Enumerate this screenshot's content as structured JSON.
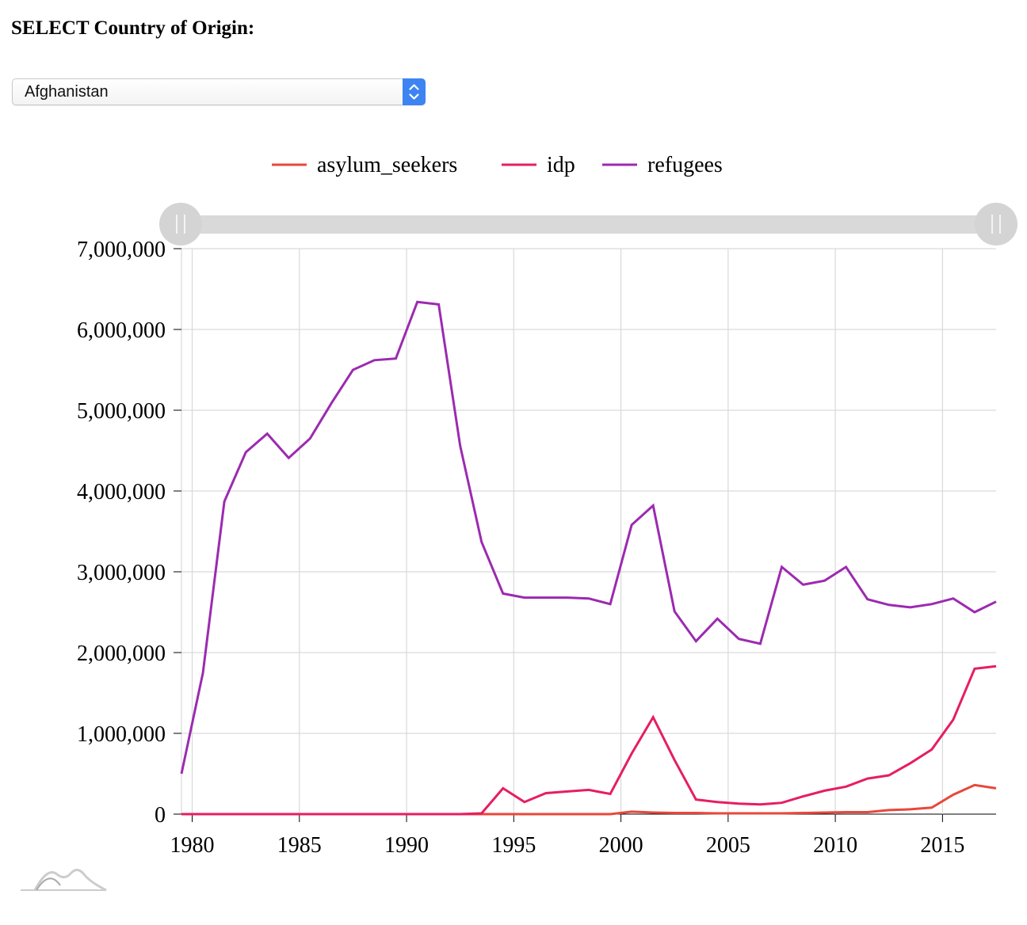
{
  "header": {
    "select_label": "SELECT Country of Origin:"
  },
  "country_select": {
    "value": "Afghanistan"
  },
  "icons": {
    "dropdown": "chevron-up-down-icon",
    "slider_grip": "grip-icon",
    "logo": "amcharts-logo-icon"
  },
  "chart_data": {
    "type": "line",
    "title": "",
    "xlabel": "",
    "ylabel": "",
    "xlim": [
      1979.5,
      2017.5
    ],
    "ylim": [
      0,
      7000000
    ],
    "grid": true,
    "legend_position": "top-center",
    "x_ticks": [
      "1980",
      "1985",
      "1990",
      "1995",
      "2000",
      "2005",
      "2010",
      "2015"
    ],
    "y_ticks": [
      "0",
      "1,000,000",
      "2,000,000",
      "3,000,000",
      "4,000,000",
      "5,000,000",
      "6,000,000",
      "7,000,000"
    ],
    "x": [
      1979.5,
      1980.5,
      1981.5,
      1982.5,
      1983.5,
      1984.5,
      1985.5,
      1986.5,
      1987.5,
      1988.5,
      1989.5,
      1990.5,
      1991.5,
      1992.5,
      1993.5,
      1994.5,
      1995.5,
      1996.5,
      1997.5,
      1998.5,
      1999.5,
      2000.5,
      2001.5,
      2002.5,
      2003.5,
      2004.5,
      2005.5,
      2006.5,
      2007.5,
      2008.5,
      2009.5,
      2010.5,
      2011.5,
      2012.5,
      2013.5,
      2014.5,
      2015.5,
      2016.5,
      2017.5
    ],
    "series": [
      {
        "name": "asylum_seekers",
        "color": "#e8483a",
        "values": [
          0,
          0,
          0,
          0,
          0,
          0,
          0,
          0,
          0,
          0,
          0,
          0,
          0,
          0,
          0,
          0,
          0,
          0,
          0,
          0,
          0,
          30000,
          20000,
          15000,
          15000,
          10000,
          10000,
          10000,
          10000,
          15000,
          20000,
          25000,
          25000,
          50000,
          60000,
          80000,
          240000,
          360000,
          320000
        ]
      },
      {
        "name": "idp",
        "color": "#e61e61",
        "values": [
          0,
          0,
          0,
          0,
          0,
          0,
          0,
          0,
          0,
          0,
          0,
          0,
          0,
          0,
          10000,
          320000,
          150000,
          260000,
          280000,
          300000,
          250000,
          750000,
          1200000,
          670000,
          180000,
          150000,
          130000,
          120000,
          140000,
          220000,
          290000,
          340000,
          440000,
          480000,
          630000,
          800000,
          1170000,
          1800000,
          1830000
        ]
      },
      {
        "name": "refugees",
        "color": "#9c2ab0",
        "values": [
          500000,
          1750000,
          3870000,
          4480000,
          4710000,
          4410000,
          4650000,
          5090000,
          5500000,
          5620000,
          5640000,
          6340000,
          6310000,
          4560000,
          3370000,
          2730000,
          2680000,
          2680000,
          2680000,
          2670000,
          2600000,
          3580000,
          3820000,
          2510000,
          2140000,
          2420000,
          2170000,
          2110000,
          3060000,
          2840000,
          2890000,
          3060000,
          2660000,
          2590000,
          2560000,
          2600000,
          2670000,
          2500000,
          2630000
        ]
      }
    ]
  }
}
